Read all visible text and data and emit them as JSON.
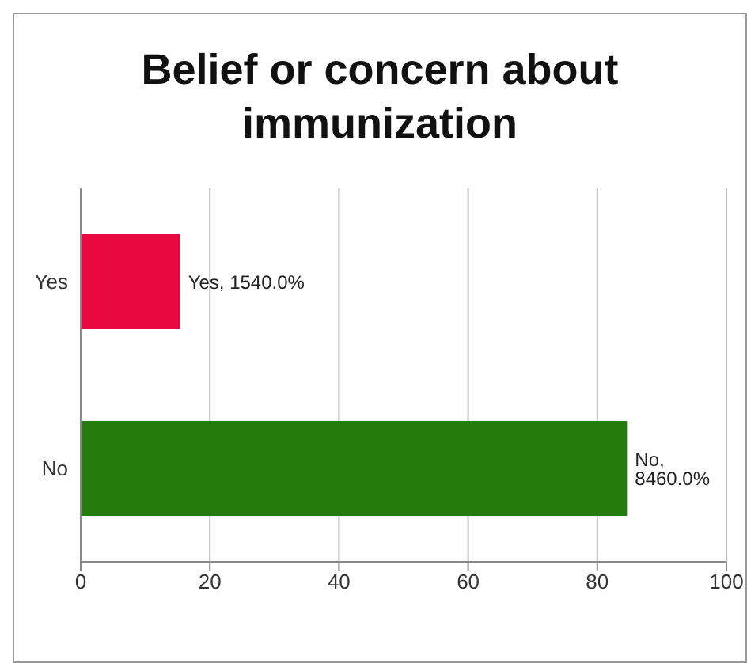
{
  "chart_data": {
    "type": "bar",
    "orientation": "horizontal",
    "title": "Belief or concern about immunization",
    "categories": [
      "Yes",
      "No"
    ],
    "values": [
      15.4,
      84.6
    ],
    "colors": [
      "#e8083f",
      "#247a0c"
    ],
    "value_labels": [
      "Yes, 1540.0%",
      "No, 8460.0%"
    ],
    "xlim": [
      0,
      100
    ],
    "xticks": [
      0,
      20,
      40,
      60,
      80,
      100
    ],
    "grid": "x"
  }
}
